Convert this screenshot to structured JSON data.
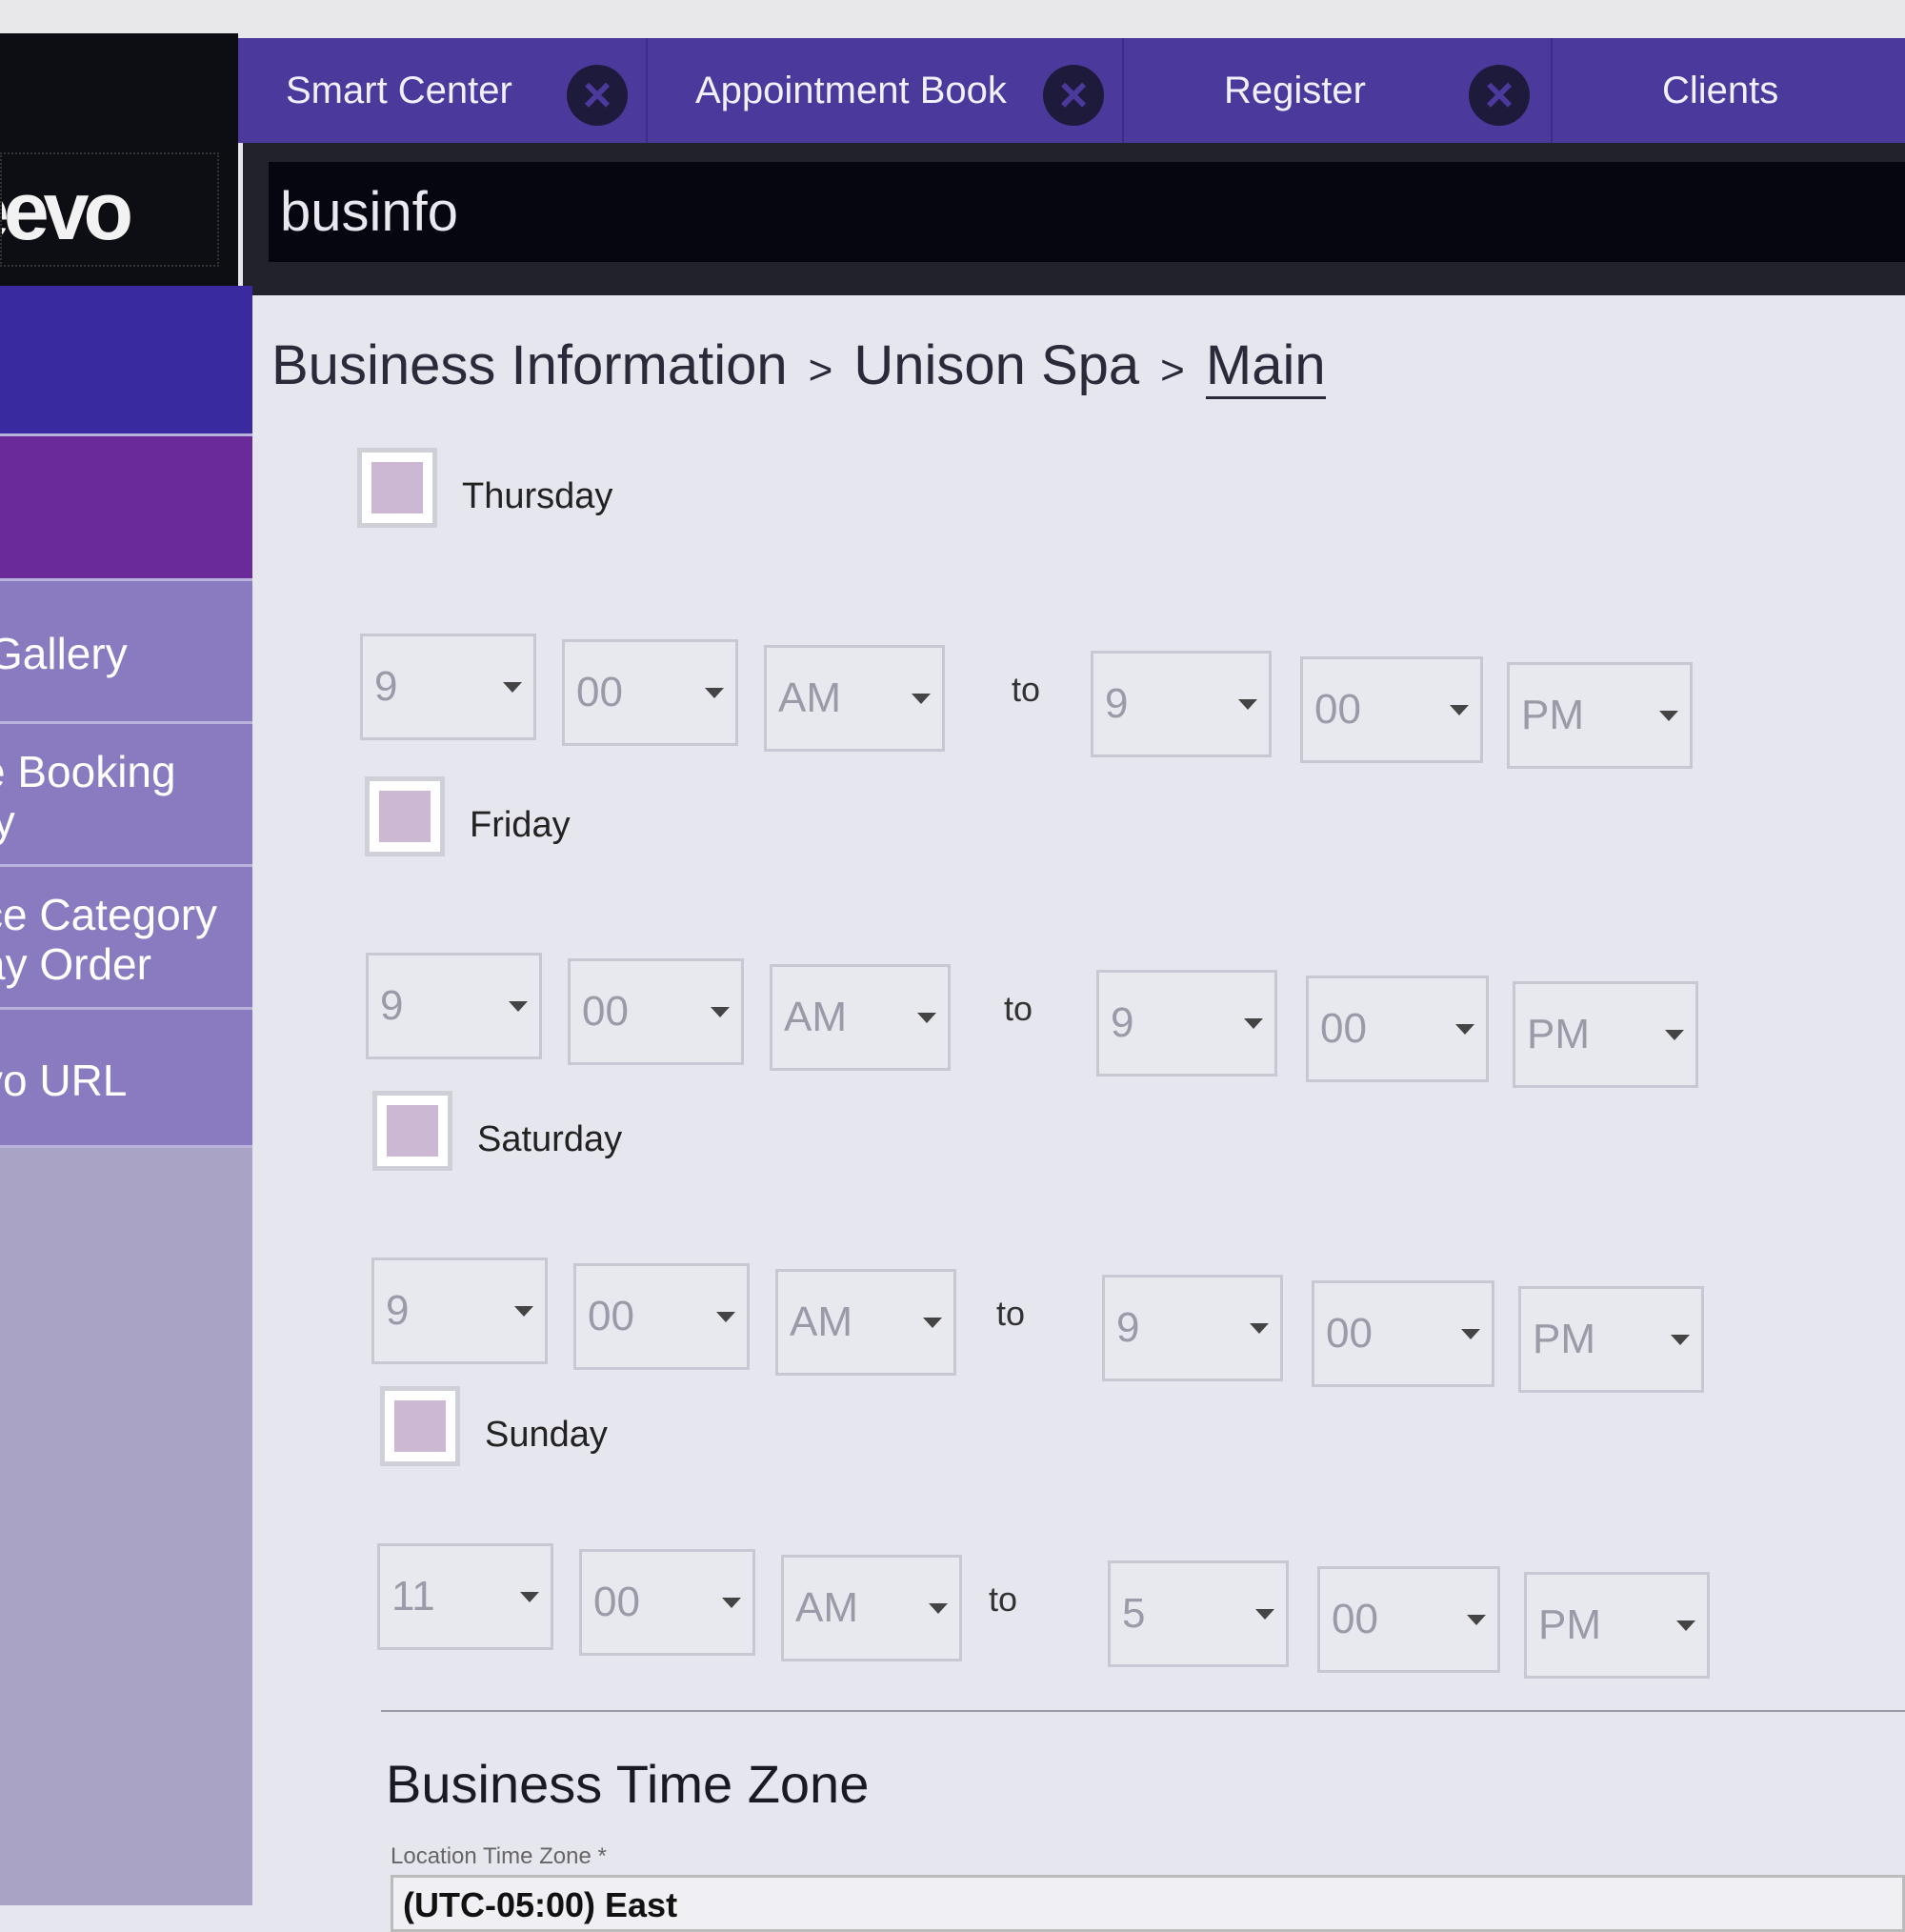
{
  "tabs": [
    {
      "label": "Smart Center",
      "closable": true
    },
    {
      "label": "Appointment Book",
      "closable": true
    },
    {
      "label": "Register",
      "closable": true
    },
    {
      "label": "Clients",
      "closable": false
    }
  ],
  "logo": "eevo",
  "search": {
    "value": "businfo"
  },
  "sidebar": {
    "items": [
      "Gallery",
      "e Booking\nty",
      "ce Category\nay Order",
      "vo URL"
    ]
  },
  "breadcrumb": {
    "items": [
      "Business Information",
      "Unison Spa",
      "Main"
    ],
    "separator": ">"
  },
  "to_label": "to",
  "days": [
    {
      "name": "Thursday",
      "open": [
        "9",
        "00",
        "AM"
      ],
      "close": [
        "9",
        "00",
        "PM"
      ]
    },
    {
      "name": "Friday",
      "open": [
        "9",
        "00",
        "AM"
      ],
      "close": [
        "9",
        "00",
        "PM"
      ]
    },
    {
      "name": "Saturday",
      "open": [
        "9",
        "00",
        "AM"
      ],
      "close": [
        "9",
        "00",
        "PM"
      ]
    },
    {
      "name": "Sunday",
      "open": [
        "11",
        "00",
        "AM"
      ],
      "close": [
        "5",
        "00",
        "PM"
      ]
    }
  ],
  "timezone": {
    "heading": "Business Time Zone",
    "label": "Location Time Zone *",
    "value": "(UTC-05:00) East"
  },
  "colors": {
    "tabbar": "#4b3a9c",
    "sidebar_blue": "#3a2aa0",
    "sidebar_purple": "#6a2a9a",
    "sidebar_item": "#8a7ac0"
  }
}
